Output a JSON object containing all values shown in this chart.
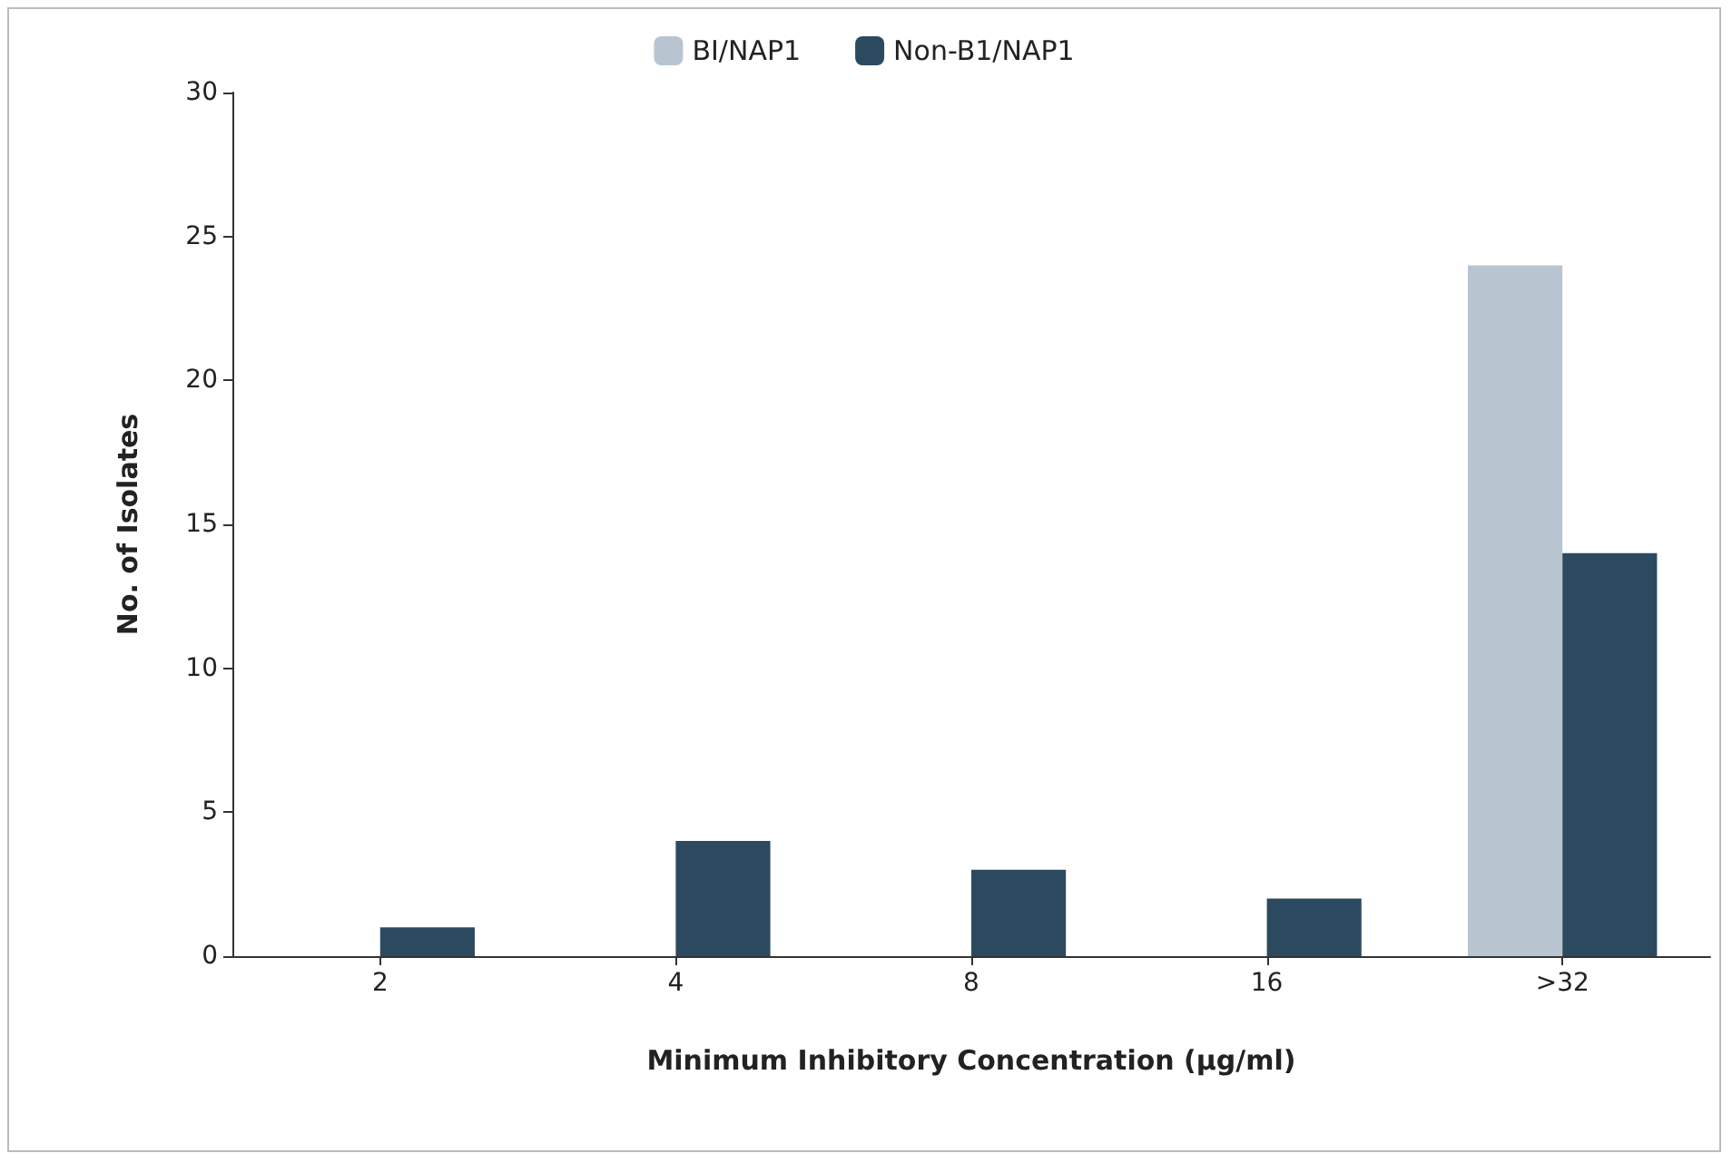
{
  "chart_data": {
    "type": "bar",
    "xlabel": "Minimum Inhibitory Concentration (μg/ml)",
    "ylabel": "No. of Isolates",
    "categories": [
      "2",
      "4",
      "8",
      "16",
      ">32"
    ],
    "series": [
      {
        "name": "BI/NAP1",
        "color": "#b8c5d0",
        "values": [
          0,
          0,
          0,
          0,
          24
        ]
      },
      {
        "name": "Non-B1/NAP1",
        "color": "#2c4a5f",
        "values": [
          1,
          4,
          3,
          2,
          14
        ]
      }
    ],
    "ylim": [
      0,
      30
    ],
    "yticks": [
      0,
      5,
      10,
      15,
      20,
      25,
      30
    ],
    "grid": false,
    "legend": "top"
  }
}
